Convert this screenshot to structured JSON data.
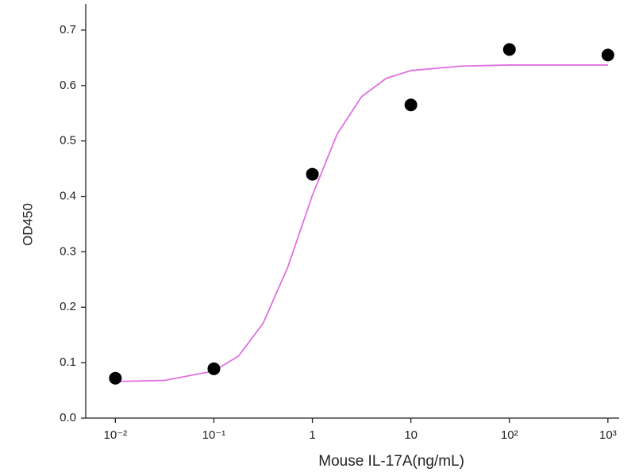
{
  "chart_data": {
    "type": "scatter",
    "x_label": "Mouse IL-17A(ng/mL)",
    "y_label": "OD450",
    "x_scale": "log",
    "xlim": [
      0.005,
      1300
    ],
    "ylim": [
      0,
      0.75
    ],
    "xticks": [
      {
        "value": 0.01,
        "label": "10⁻²"
      },
      {
        "value": 0.1,
        "label": "10⁻¹"
      },
      1,
      10,
      {
        "value": 100,
        "label": "10²"
      },
      {
        "value": 1000,
        "label": "10³"
      }
    ],
    "yticks": [
      {
        "value": 0,
        "label": "0.0"
      },
      0.1,
      0.2,
      0.3,
      0.4,
      0.5,
      0.6,
      0.7
    ],
    "series": [
      {
        "type": "scatter",
        "color": "#000000",
        "x": [
          0.01,
          0.1,
          1,
          10,
          100,
          1000
        ],
        "values": [
          0.072,
          0.089,
          0.44,
          0.565,
          0.665,
          0.655
        ]
      },
      {
        "type": "line",
        "color": "#e070e0",
        "x": [
          0.01,
          0.0316,
          0.1,
          0.178,
          0.316,
          0.562,
          1,
          1.78,
          3.16,
          5.62,
          10,
          31.6,
          100,
          1000
        ],
        "values": [
          0.066,
          0.068,
          0.085,
          0.112,
          0.171,
          0.272,
          0.402,
          0.512,
          0.58,
          0.613,
          0.627,
          0.635,
          0.637,
          0.637
        ]
      }
    ]
  }
}
